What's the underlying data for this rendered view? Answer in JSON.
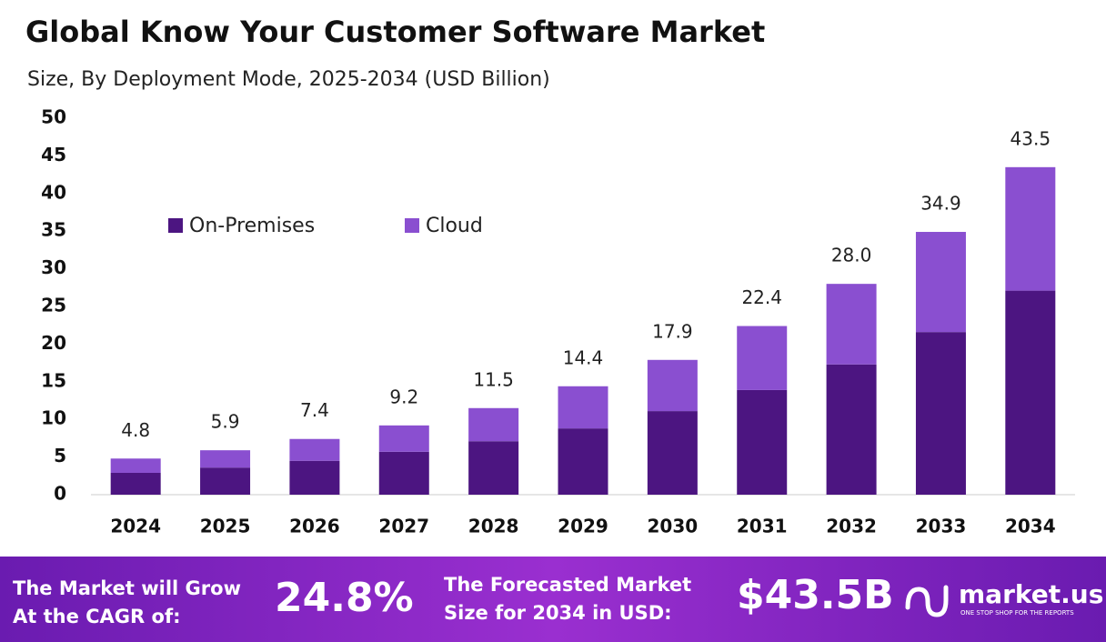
{
  "chart_data": {
    "type": "stacked_bar",
    "title": "Global Know Your Customer Software Market",
    "subtitle": "Size, By Deployment Mode, 2025-2034 (USD Billion)",
    "categories": [
      "2024",
      "2025",
      "2026",
      "2027",
      "2028",
      "2029",
      "2030",
      "2031",
      "2032",
      "2033",
      "2034"
    ],
    "series": [
      {
        "name": "On-Premises",
        "color": "#4c1581",
        "values": [
          2.9,
          3.6,
          4.5,
          5.7,
          7.1,
          8.8,
          11.1,
          13.9,
          17.3,
          21.6,
          27.1
        ]
      },
      {
        "name": "Cloud",
        "color": "#8a4fd0",
        "values": [
          1.9,
          2.3,
          2.9,
          3.5,
          4.4,
          5.6,
          6.8,
          8.5,
          10.7,
          13.3,
          16.4
        ]
      }
    ],
    "totals": [
      4.8,
      5.9,
      7.4,
      9.2,
      11.5,
      14.4,
      17.9,
      22.4,
      28.0,
      34.9,
      43.5
    ],
    "total_labels": [
      "4.8",
      "5.9",
      "7.4",
      "9.2",
      "11.5",
      "14.4",
      "17.9",
      "22.4",
      "28.0",
      "34.9",
      "43.5"
    ],
    "ylim": [
      0,
      50
    ],
    "yticks": [
      0,
      5,
      10,
      15,
      20,
      25,
      30,
      35,
      40,
      45,
      50
    ]
  },
  "footer": {
    "cagr_lines": [
      "The Market will Grow",
      "At the CAGR of:"
    ],
    "cagr": "24.8%",
    "forecast_lines": [
      "The Forecasted Market",
      "Size for 2034 in USD:"
    ],
    "forecast": "$43.5B",
    "brand": "market.us",
    "tagline": "ONE STOP SHOP FOR THE REPORTS"
  }
}
